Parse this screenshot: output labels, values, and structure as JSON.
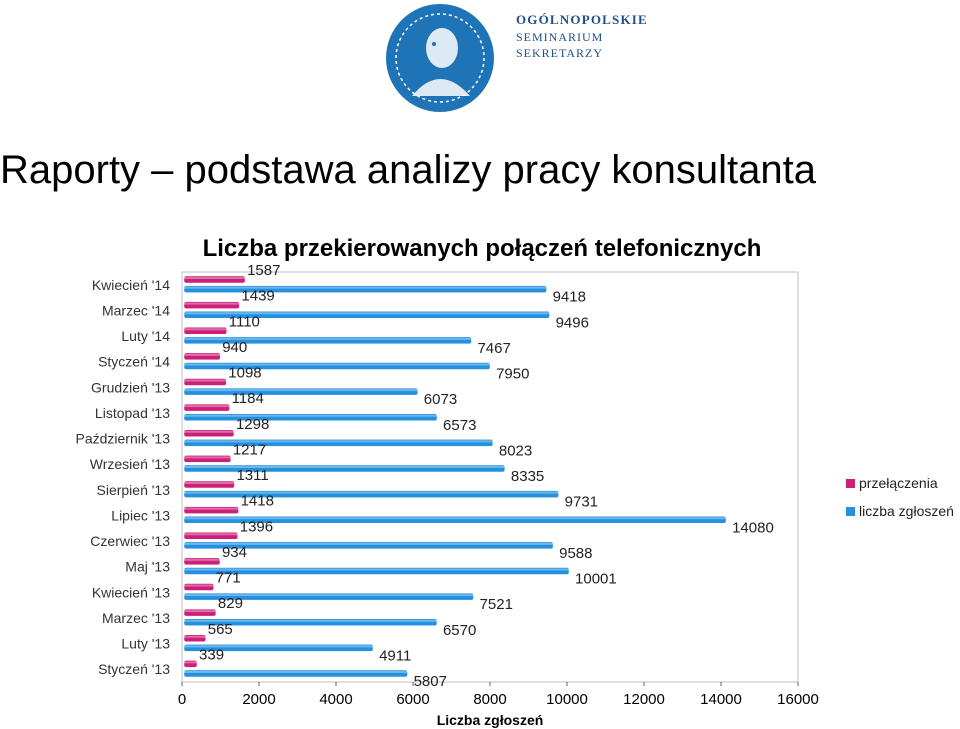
{
  "header": {
    "org_lines": [
      "OGÓLNOPOLSKIE",
      "SEMINARIUM",
      "SEKRETARZY"
    ]
  },
  "slide": {
    "title": "Raporty – podstawa analizy pracy konsultanta"
  },
  "colors": {
    "transfers": "#cc1f7a",
    "reports": "#2490e0",
    "logo_blue": "#1f74b8",
    "axis": "#666666"
  },
  "icons": {
    "logo": "seal-portrait-icon"
  },
  "chart_data": {
    "type": "bar",
    "orientation": "horizontal",
    "title": "Liczba przekierowanych połączeń telefonicznych",
    "xlabel": "Liczba zgłoszeń",
    "ylabel": "",
    "xlim": [
      0,
      16000
    ],
    "xticks": [
      0,
      2000,
      4000,
      6000,
      8000,
      10000,
      12000,
      14000,
      16000
    ],
    "grid": false,
    "legend_position": "right",
    "categories": [
      "Kwiecień '14",
      "Marzec '14",
      "Luty '14",
      "Styczeń '14",
      "Grudzień '13",
      "Listopad '13",
      "Październik '13",
      "Wrzesień '13",
      "Sierpień '13",
      "Lipiec '13",
      "Czerwiec '13",
      "Maj '13",
      "Kwiecień '13",
      "Marzec '13",
      "Luty '13",
      "Styczeń '13"
    ],
    "series": [
      {
        "name": "przełączenia",
        "values": [
          1587,
          1439,
          1110,
          940,
          1098,
          1184,
          1298,
          1217,
          1311,
          1418,
          1396,
          934,
          771,
          829,
          565,
          339
        ]
      },
      {
        "name": "liczba zgłoszeń",
        "values": [
          9418,
          9496,
          7467,
          7950,
          6073,
          6573,
          8023,
          8335,
          9731,
          14080,
          9588,
          10001,
          7521,
          6570,
          4911,
          5807
        ]
      }
    ]
  }
}
